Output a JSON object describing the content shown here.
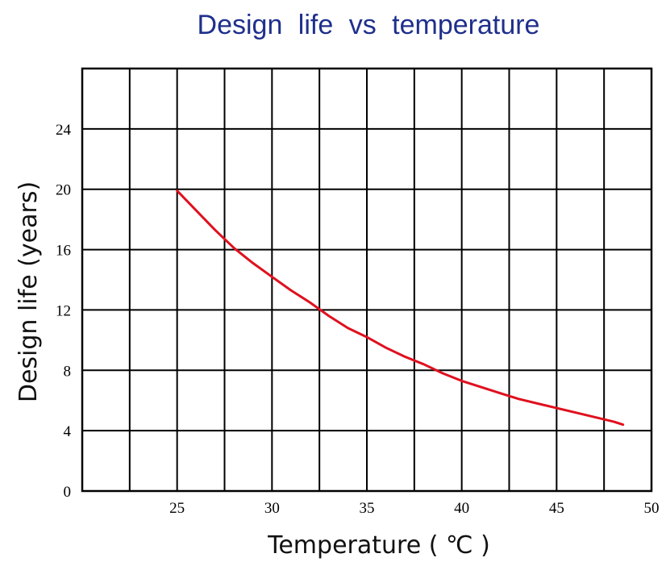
{
  "chart_data": {
    "type": "line",
    "title": "Design  life  vs  temperature",
    "xlabel": "Temperature ( ℃ )",
    "ylabel": "Design life (years)",
    "xlim": [
      20,
      50
    ],
    "ylim": [
      0,
      28
    ],
    "xticks": [
      25,
      30,
      35,
      40,
      45,
      50
    ],
    "yticks": [
      0,
      4,
      8,
      12,
      16,
      20,
      24
    ],
    "x_grid_step": 2.5,
    "y_grid_step": 4,
    "grid": true,
    "legend": "none",
    "series": [
      {
        "color": "#e0101e",
        "x": [
          25,
          26,
          27,
          28,
          29,
          30,
          31,
          32,
          33,
          34,
          35,
          36,
          37,
          38,
          39,
          40,
          41,
          42,
          43,
          44,
          45,
          46,
          47,
          48,
          48.5
        ],
        "y": [
          19.9,
          18.6,
          17.3,
          16.1,
          15.1,
          14.2,
          13.3,
          12.5,
          11.6,
          10.8,
          10.2,
          9.5,
          8.9,
          8.4,
          7.8,
          7.3,
          6.9,
          6.5,
          6.1,
          5.8,
          5.5,
          5.2,
          4.9,
          4.6,
          4.4
        ]
      }
    ]
  },
  "colors": {
    "title": "#1f2f8c",
    "grid": "#000000",
    "line": "#e0101e"
  }
}
